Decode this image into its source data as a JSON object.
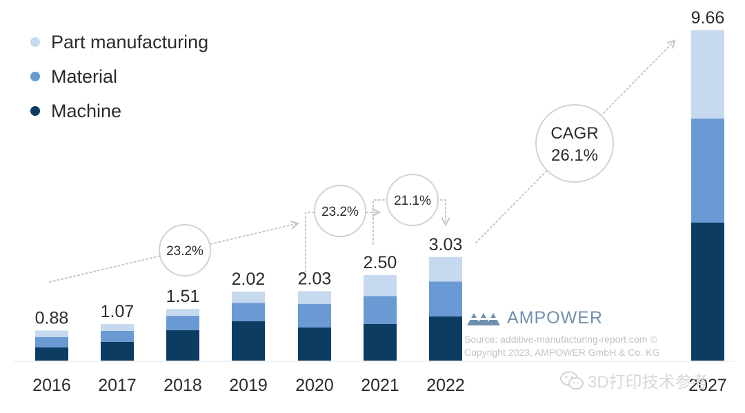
{
  "chart_data": {
    "type": "stacked-bar",
    "categories": [
      "2016",
      "2017",
      "2018",
      "2019",
      "2020",
      "2021",
      "2022",
      "2027"
    ],
    "totals": [
      0.88,
      1.07,
      1.51,
      2.02,
      2.03,
      2.5,
      3.03,
      9.66
    ],
    "total_labels": [
      "0.88",
      "1.07",
      "1.51",
      "2.02",
      "2.03",
      "2.50",
      "3.03",
      "9.66"
    ],
    "series": [
      {
        "name": "Machine",
        "color": "#0d3c63",
        "values": [
          0.39,
          0.55,
          0.89,
          1.15,
          0.97,
          1.07,
          1.29,
          4.04
        ]
      },
      {
        "name": "Material",
        "color": "#6a9ad4",
        "values": [
          0.3,
          0.32,
          0.42,
          0.54,
          0.69,
          0.82,
          1.02,
          3.04
        ]
      },
      {
        "name": "Part manufacturing",
        "color": "#c6d9ee",
        "values": [
          0.19,
          0.2,
          0.2,
          0.33,
          0.37,
          0.61,
          0.72,
          2.58
        ]
      }
    ],
    "legend": [
      "Part manufacturing",
      "Material",
      "Machine"
    ],
    "annotations": [
      {
        "label": "23.2%",
        "from": "2016",
        "to": "2020"
      },
      {
        "label": "23.2%",
        "from": "2020",
        "to": "2021"
      },
      {
        "label": "21.1%",
        "from": "2021",
        "to": "2022"
      },
      {
        "label_lines": [
          "CAGR",
          "26.1%"
        ],
        "from": "2022",
        "to": "2027"
      }
    ],
    "ylim": [
      0,
      9.66
    ],
    "grid": false,
    "legend_position": "top-left"
  },
  "legend_colors": {
    "Part manufacturing": "#c6d9ee",
    "Material": "#6a9ad4",
    "Machine": "#0d3c63"
  },
  "brand": {
    "name": "AMPOWER",
    "icon": "ampower-logo-icon",
    "color": "#6f8fb0"
  },
  "source": {
    "line1": "Source: additive-manufacturing-report.com ©",
    "line2": "Copyright 2023, AMPOWER GmbH & Co. KG"
  },
  "watermark": {
    "text": "3D打印技术参考",
    "icon": "wechat-icon"
  }
}
